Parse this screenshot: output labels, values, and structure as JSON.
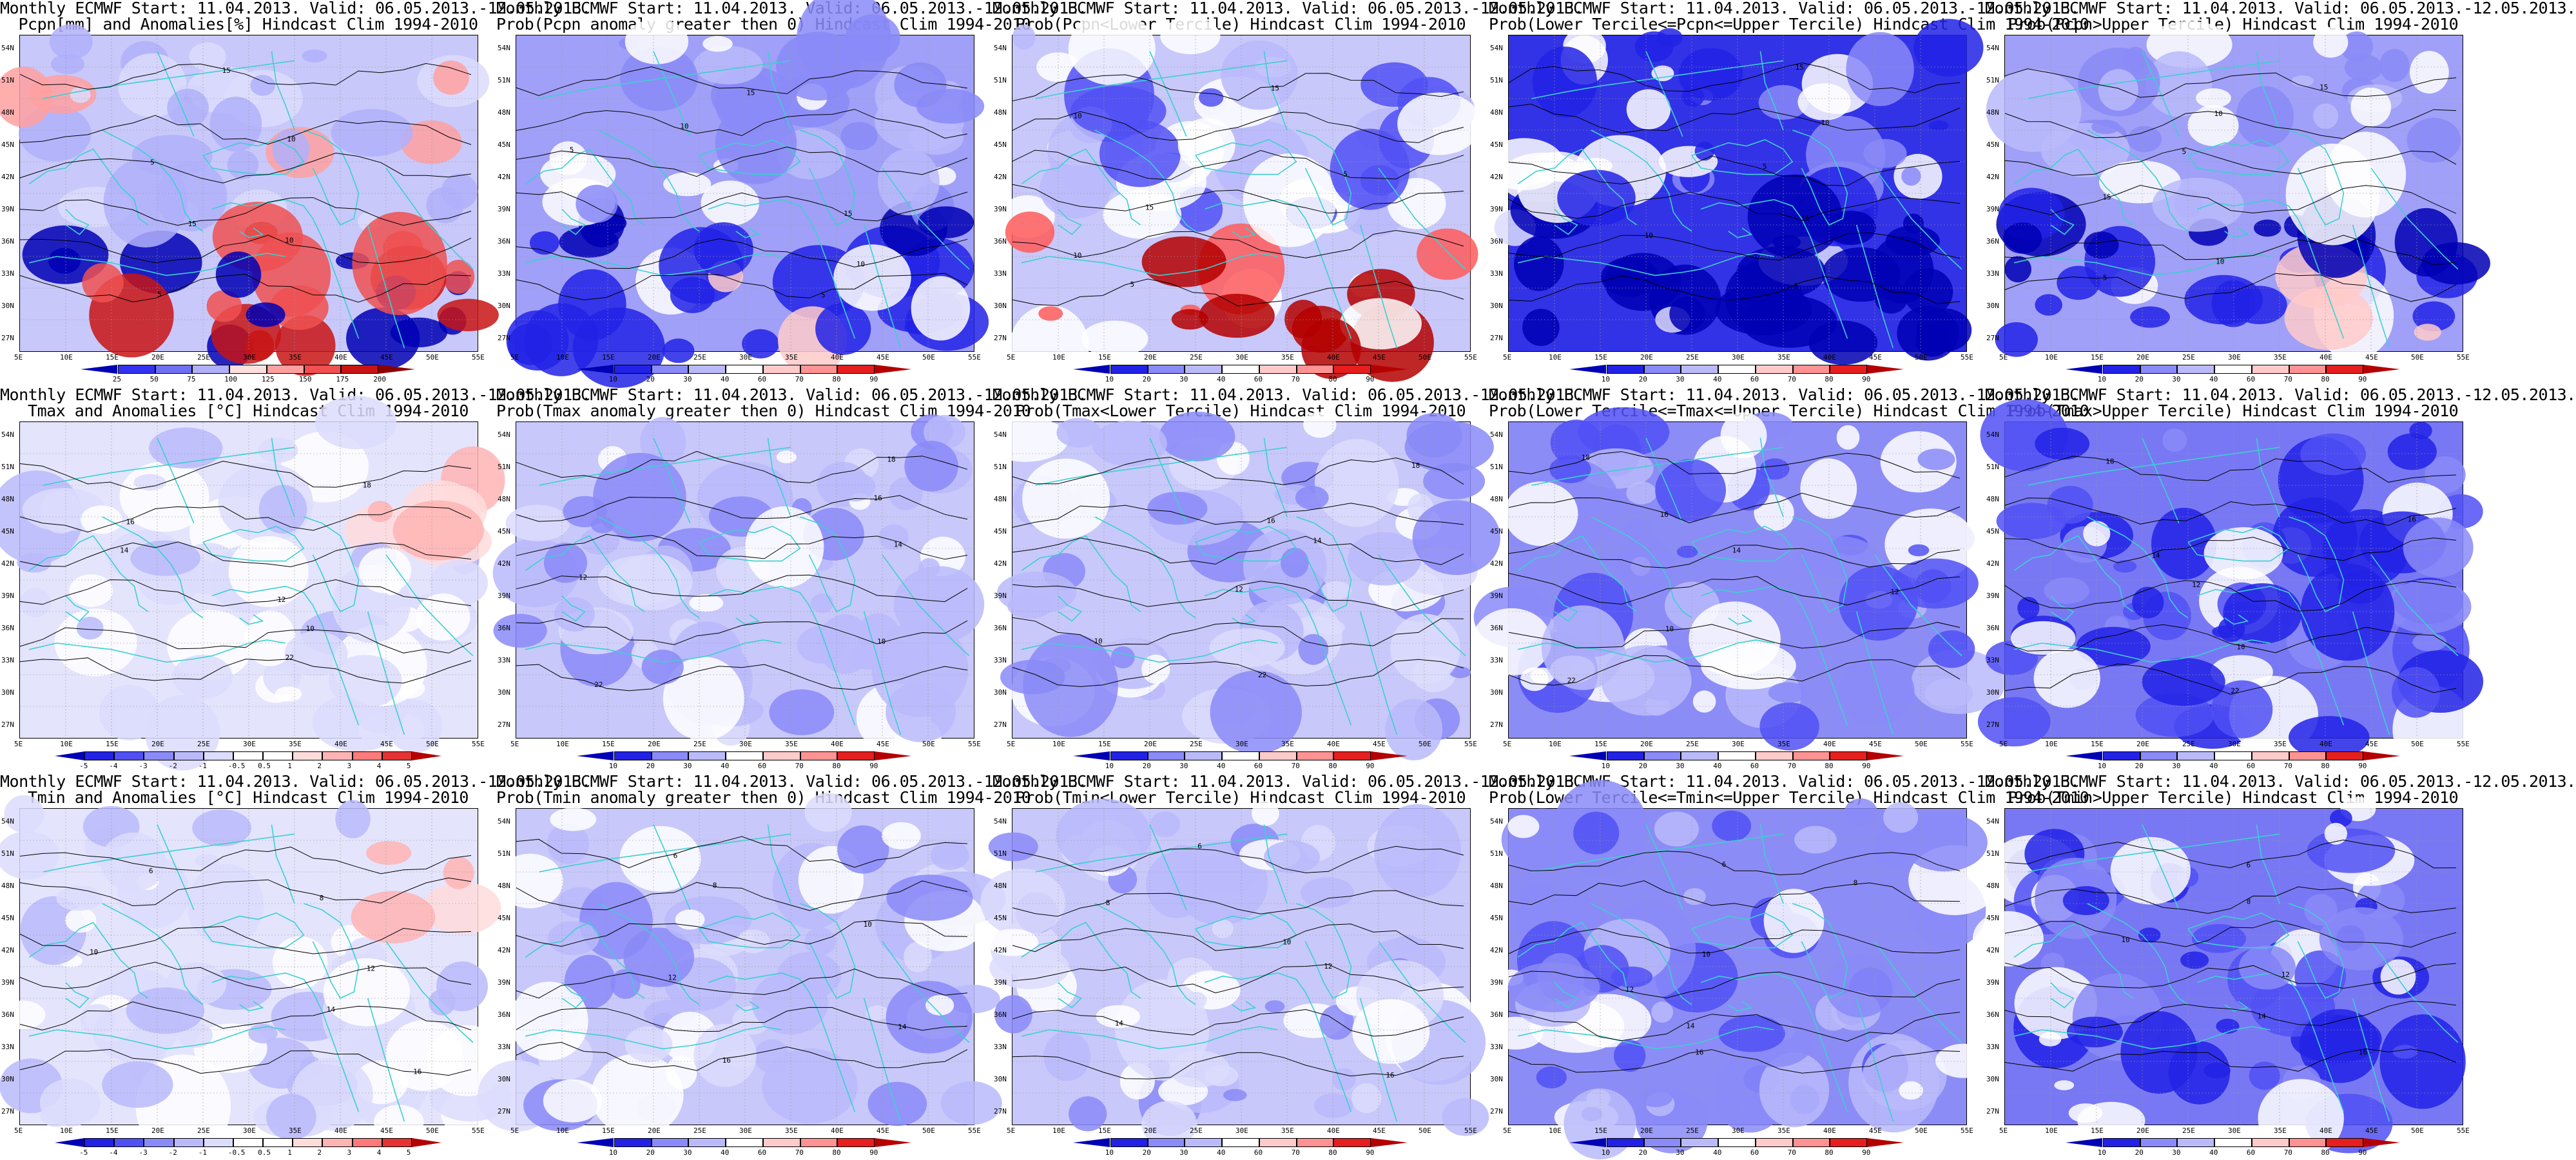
{
  "panels": [
    {
      "line1": "Monthly ECMWF Start: 11.04.2013. Valid: 06.05.2013.-12.05.2013.",
      "line2": "Pcpn[mm] and Anomalies[%] Hindcast Clim 1994-2010",
      "style": "precip-anom",
      "cbar": [
        "25",
        "50",
        "75",
        "100",
        "125",
        "150",
        "175",
        "200"
      ],
      "contours": [
        "15",
        "10",
        "5"
      ]
    },
    {
      "line1": "Monthly ECMWF Start: 11.04.2013. Valid: 06.05.2013.-12.05.2013.",
      "line2": "Prob(Pcpn anomaly greater then 0) Hindcast Clim 1994-2010",
      "style": "precip-prob-low",
      "cbar": [
        "10",
        "20",
        "30",
        "40",
        "60",
        "70",
        "80",
        "90"
      ],
      "contours": [
        "15",
        "10",
        "5"
      ]
    },
    {
      "line1": "Monthly ECMWF Start: 11.04.2013. Valid: 06.05.2013.-12.05.2013.",
      "line2": "Prob(Pcpn<Lower Tercile) Hindcast Clim 1994-2010",
      "style": "precip-prob-high",
      "cbar": [
        "10",
        "20",
        "30",
        "40",
        "60",
        "70",
        "80",
        "90"
      ],
      "contours": [
        "15",
        "10",
        "5"
      ]
    },
    {
      "line1": "Monthly ECMWF Start: 11.04.2013. Valid: 06.05.2013.-12.05.2013.",
      "line2": "Prob(Lower Tercile<=Pcpn<=Upper Tercile) Hindcast Clim 1994-2010",
      "style": "precip-prob-dark",
      "cbar": [
        "10",
        "20",
        "30",
        "40",
        "60",
        "70",
        "80",
        "90"
      ],
      "contours": [
        "15",
        "10",
        "5"
      ]
    },
    {
      "line1": "Monthly ECMWF Start: 11.04.2013. Valid: 06.05.2013.-12.05.2013.",
      "line2": "Prob(Pcpn>Upper Tercile) Hindcast Clim 1994-2010",
      "style": "precip-prob-low",
      "cbar": [
        "10",
        "20",
        "30",
        "40",
        "60",
        "70",
        "80",
        "90"
      ],
      "contours": [
        "15",
        "10",
        "5"
      ]
    },
    {
      "line1": "Monthly ECMWF Start: 11.04.2013. Valid: 06.05.2013.-12.05.2013.",
      "line2": "Tmax and Anomalies [°C] Hindcast Clim 1994-2010",
      "style": "temp-anom",
      "cbar": [
        "-5",
        "-4",
        "-3",
        "-2",
        "-1",
        "-0.5",
        "0.5",
        "1",
        "2",
        "3",
        "4",
        "5"
      ],
      "contours": [
        "18",
        "16",
        "14",
        "12",
        "10",
        "22"
      ]
    },
    {
      "line1": "Monthly ECMWF Start: 11.04.2013. Valid: 06.05.2013.-12.05.2013.",
      "line2": "Prob(Tmax anomaly greater then 0) Hindcast Clim 1994-2010",
      "style": "temp-prob-light",
      "cbar": [
        "10",
        "20",
        "30",
        "40",
        "60",
        "70",
        "80",
        "90"
      ],
      "contours": [
        "18",
        "16",
        "14",
        "12",
        "10",
        "22"
      ]
    },
    {
      "line1": "Monthly ECMWF Start: 11.04.2013. Valid: 06.05.2013.-12.05.2013.",
      "line2": "Prob(Tmax<Lower Tercile) Hindcast Clim 1994-2010",
      "style": "temp-prob-light",
      "cbar": [
        "10",
        "20",
        "30",
        "40",
        "60",
        "70",
        "80",
        "90"
      ],
      "contours": [
        "18",
        "16",
        "14",
        "12",
        "10",
        "22"
      ]
    },
    {
      "line1": "Monthly ECMWF Start: 11.04.2013. Valid: 06.05.2013.-12.05.2013.",
      "line2": "Prob(Lower Tercile<=Tmax<=Upper Tercile) Hindcast Clim 1994-2010",
      "style": "temp-prob-mid",
      "cbar": [
        "10",
        "20",
        "30",
        "40",
        "60",
        "70",
        "80",
        "90"
      ],
      "contours": [
        "18",
        "16",
        "14",
        "12",
        "10",
        "22"
      ]
    },
    {
      "line1": "Monthly ECMWF Start: 11.04.2013. Valid: 06.05.2013.-12.05.2013.",
      "line2": "Prob(Tmax>Upper Tercile) Hindcast Clim 1994-2010",
      "style": "temp-prob-dark",
      "cbar": [
        "10",
        "20",
        "30",
        "40",
        "60",
        "70",
        "80",
        "90"
      ],
      "contours": [
        "18",
        "16",
        "14",
        "12",
        "10",
        "22"
      ]
    },
    {
      "line1": "Monthly ECMWF Start: 11.04.2013. Valid: 06.05.2013.-12.05.2013.",
      "line2": "Tmin and Anomalies [°C] Hindcast Clim 1994-2010",
      "style": "temp-anom",
      "cbar": [
        "-5",
        "-4",
        "-3",
        "-2",
        "-1",
        "-0.5",
        "0.5",
        "1",
        "2",
        "3",
        "4",
        "5"
      ],
      "contours": [
        "6",
        "8",
        "10",
        "12",
        "14",
        "16"
      ]
    },
    {
      "line1": "Monthly ECMWF Start: 11.04.2013. Valid: 06.05.2013.-12.05.2013.",
      "line2": "Prob(Tmin anomaly greater then 0) Hindcast Clim 1994-2010",
      "style": "temp-prob-light",
      "cbar": [
        "10",
        "20",
        "30",
        "40",
        "60",
        "70",
        "80",
        "90"
      ],
      "contours": [
        "6",
        "8",
        "10",
        "12",
        "14",
        "16"
      ]
    },
    {
      "line1": "Monthly ECMWF Start: 11.04.2013. Valid: 06.05.2013.-12.05.2013.",
      "line2": "Prob(Tmin<Lower Tercile) Hindcast Clim 1994-2010",
      "style": "temp-prob-light",
      "cbar": [
        "10",
        "20",
        "30",
        "40",
        "60",
        "70",
        "80",
        "90"
      ],
      "contours": [
        "6",
        "8",
        "10",
        "12",
        "14",
        "16"
      ]
    },
    {
      "line1": "Monthly ECMWF Start: 11.04.2013. Valid: 06.05.2013.-12.05.2013.",
      "line2": "Prob(Lower Tercile<=Tmin<=Upper Tercile) Hindcast Clim 1994-2010",
      "style": "temp-prob-mid",
      "cbar": [
        "10",
        "20",
        "30",
        "40",
        "60",
        "70",
        "80",
        "90"
      ],
      "contours": [
        "6",
        "8",
        "10",
        "12",
        "14",
        "16"
      ]
    },
    {
      "line1": "Monthly ECMWF Start: 11.04.2013. Valid: 06.05.2013.-12.05.2013.",
      "line2": "Prob(Tmin>Upper Tercile) Hindcast Clim 1994-2010",
      "style": "temp-prob-dark",
      "cbar": [
        "10",
        "20",
        "30",
        "40",
        "60",
        "70",
        "80",
        "90"
      ],
      "contours": [
        "6",
        "8",
        "10",
        "12",
        "14",
        "16"
      ]
    }
  ],
  "lat_labels": [
    "54N",
    "51N",
    "48N",
    "45N",
    "42N",
    "39N",
    "36N",
    "33N",
    "30N",
    "27N"
  ],
  "lon_labels": [
    "5E",
    "10E",
    "15E",
    "20E",
    "25E",
    "30E",
    "35E",
    "40E",
    "45E",
    "50E",
    "55E"
  ],
  "colors": {
    "prob": [
      "#0000b4",
      "#2222e6",
      "#5050f5",
      "#8a8af8",
      "#babafb",
      "#dcdcfd",
      "#ffffff",
      "#ffcaca",
      "#ff9292",
      "#ff5a5a",
      "#e61e1e",
      "#b40000"
    ],
    "anom": [
      "#0000b4",
      "#2222e6",
      "#5050f5",
      "#8a8af8",
      "#babafb",
      "#dcdcfd",
      "#ffffff",
      "#ffdcdc",
      "#ffb4b4",
      "#ff7a7a",
      "#e63232",
      "#b40000"
    ],
    "precip": [
      "#0000b4",
      "#3232f0",
      "#7070f5",
      "#b0b0fa",
      "#dcdcfd",
      "#ffdede",
      "#ffa0a0",
      "#f05050",
      "#c81414",
      "#8c0000"
    ],
    "coast": "#3cd0d0",
    "contour": "#000000"
  }
}
